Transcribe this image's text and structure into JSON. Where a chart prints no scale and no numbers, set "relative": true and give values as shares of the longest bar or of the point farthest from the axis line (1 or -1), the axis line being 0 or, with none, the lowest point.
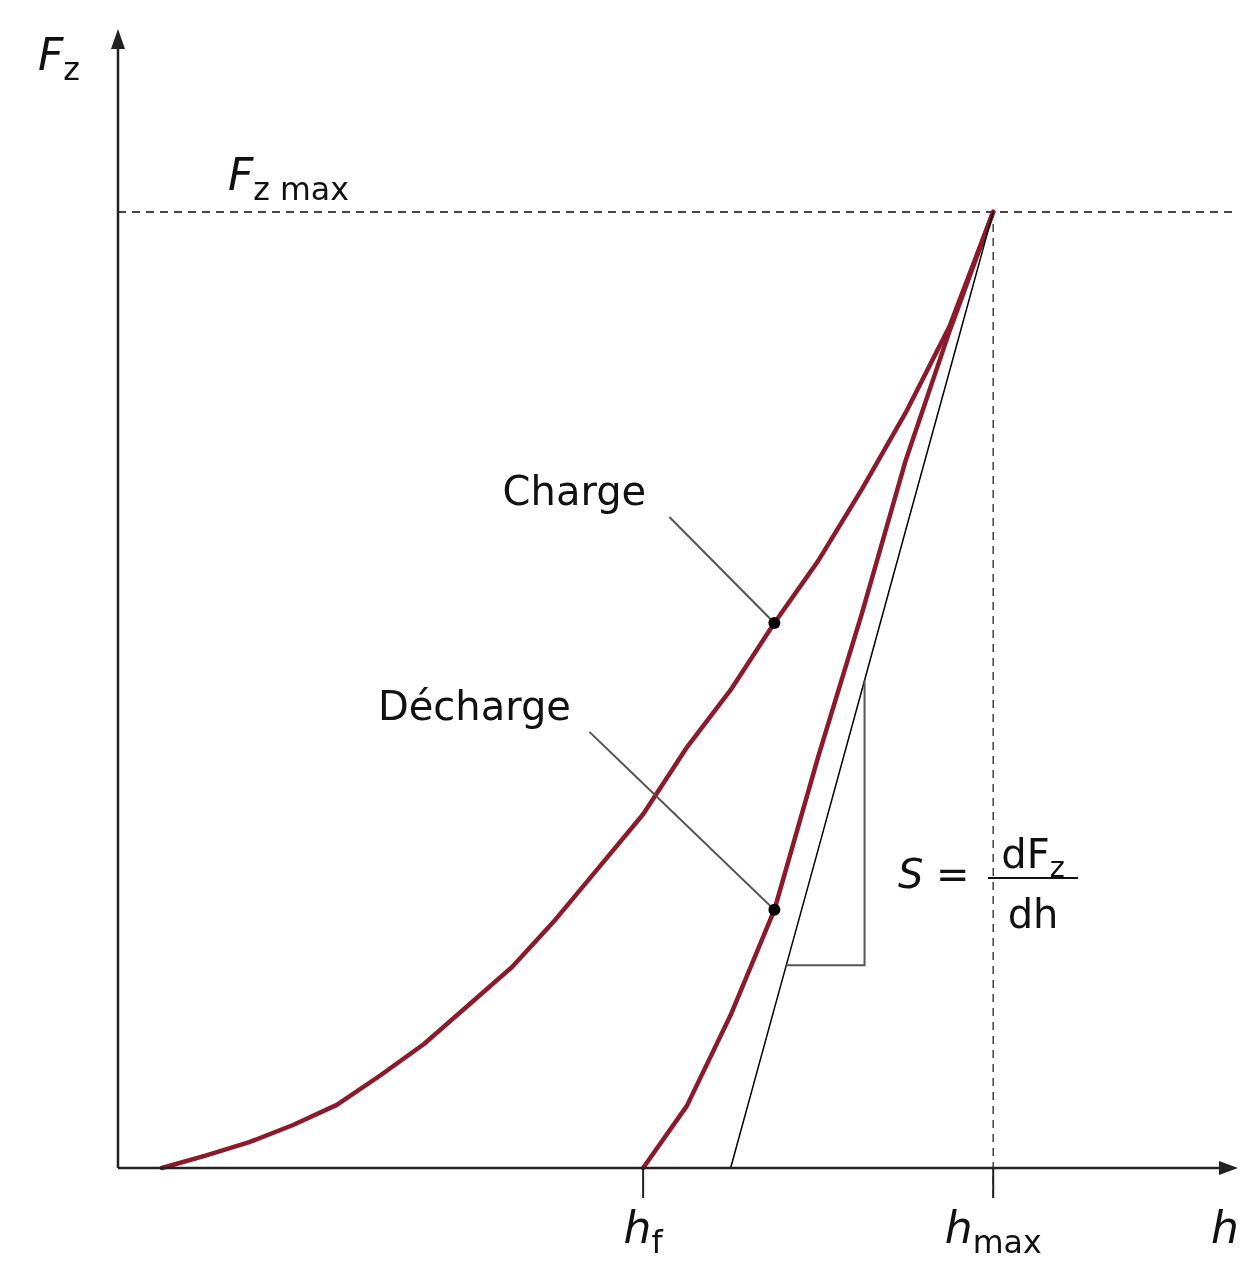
{
  "chart_data": {
    "type": "line",
    "relative": true,
    "xlabel": "h",
    "ylabel": "F$_{z}$",
    "categories": [
      null,
      null,
      null,
      null,
      null,
      null,
      null,
      null,
      null,
      null,
      null,
      null,
      "h$_{f}$",
      null,
      null,
      null,
      null,
      null,
      null,
      null,
      "h$_{max}$",
      null,
      null,
      null,
      null,
      null
    ],
    "series": [
      {
        "name": "Charge",
        "color": "#8b1a2b",
        "values": [
          null,
          0,
          0.013,
          0.027,
          0.045,
          0.066,
          0.097,
          0.13,
          0.17,
          0.21,
          0.26,
          0.315,
          0.37,
          0.44,
          0.5,
          0.57,
          0.635,
          0.71,
          0.79,
          0.88,
          1,
          null,
          null,
          null,
          null,
          null
        ]
      },
      {
        "name": "Décharge",
        "color": "#8b1a2b",
        "values": [
          null,
          null,
          null,
          null,
          null,
          null,
          null,
          null,
          null,
          null,
          null,
          null,
          0,
          0.065,
          0.16,
          0.27,
          0.43,
          0.58,
          0.74,
          0.875,
          1,
          null,
          null,
          null,
          null,
          null
        ]
      },
      {
        "color": "#000000",
        "values": [
          null,
          null,
          null,
          null,
          null,
          null,
          null,
          null,
          null,
          null,
          null,
          null,
          null,
          null,
          0,
          0.167,
          0.333,
          0.5,
          0.667,
          0.833,
          1,
          null,
          null,
          null,
          null,
          null
        ]
      }
    ],
    "ref_lines": [
      {
        "axis": "y",
        "value": 1,
        "label": "F$_{z max}$",
        "line_style": "dashed",
        "color": "#444444"
      },
      {
        "axis": "x",
        "value": "h$_{max}$",
        "line_style": "dashed",
        "color": "#444444"
      }
    ],
    "annotations": [
      "S =",
      "dF$_{z}$",
      "dh"
    ]
  }
}
